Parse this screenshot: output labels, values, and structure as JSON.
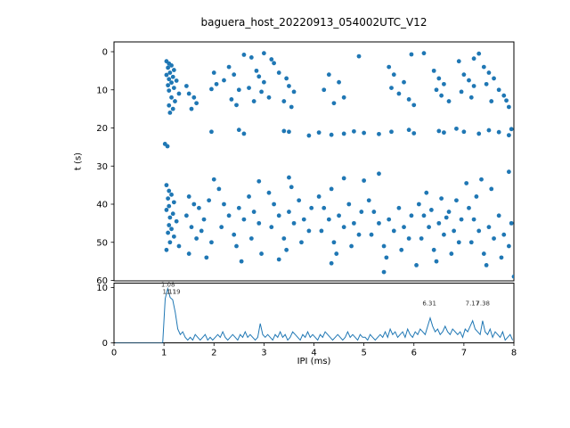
{
  "figure": {
    "title": "baguera_host_20220913_054002UTC_V12",
    "accent_color": "#1f77b4"
  },
  "chart_data": [
    {
      "type": "scatter",
      "name": "spike-raster",
      "ylabel": "t (s)",
      "xlim": [
        0,
        8
      ],
      "ylim": [
        60,
        0
      ],
      "y_inverted": true,
      "yticks": [
        0,
        10,
        20,
        30,
        40,
        50,
        60
      ],
      "grid": false,
      "marker_color": "#1f77b4",
      "points": [
        [
          1.05,
          2.5
        ],
        [
          1.1,
          3.1
        ],
        [
          1.15,
          3.6
        ],
        [
          1.08,
          4.2
        ],
        [
          1.2,
          4.8
        ],
        [
          1.12,
          5.5
        ],
        [
          1.05,
          6.1
        ],
        [
          1.18,
          6.6
        ],
        [
          1.1,
          7.2
        ],
        [
          1.25,
          7.6
        ],
        [
          1.15,
          8.1
        ],
        [
          1.08,
          8.8
        ],
        [
          1.2,
          9.5
        ],
        [
          1.1,
          10.2
        ],
        [
          1.3,
          11.0
        ],
        [
          1.15,
          12.0
        ],
        [
          1.22,
          13.0
        ],
        [
          1.1,
          14.1
        ],
        [
          1.18,
          15.0
        ],
        [
          1.12,
          16.0
        ],
        [
          1.02,
          24.2
        ],
        [
          1.07,
          24.8
        ],
        [
          1.95,
          21.0
        ],
        [
          2.5,
          20.5
        ],
        [
          2.6,
          21.5
        ],
        [
          3.4,
          20.8
        ],
        [
          3.5,
          21.0
        ],
        [
          3.9,
          22.0
        ],
        [
          4.1,
          21.2
        ],
        [
          4.35,
          21.8
        ],
        [
          4.6,
          21.5
        ],
        [
          4.8,
          20.9
        ],
        [
          5.0,
          21.3
        ],
        [
          5.3,
          21.6
        ],
        [
          5.55,
          21.0
        ],
        [
          5.9,
          20.5
        ],
        [
          6.0,
          21.4
        ],
        [
          6.5,
          20.8
        ],
        [
          6.6,
          21.2
        ],
        [
          6.85,
          20.2
        ],
        [
          7.0,
          21.0
        ],
        [
          7.3,
          21.5
        ],
        [
          7.5,
          20.6
        ],
        [
          7.7,
          21.1
        ],
        [
          7.9,
          21.9
        ],
        [
          7.95,
          20.3
        ],
        [
          1.6,
          12.0
        ],
        [
          1.65,
          13.5
        ],
        [
          1.55,
          15.0
        ],
        [
          1.5,
          11.0
        ],
        [
          1.45,
          9.0
        ],
        [
          2.3,
          4.0
        ],
        [
          2.4,
          6.0
        ],
        [
          2.2,
          7.5
        ],
        [
          2.5,
          10.0
        ],
        [
          2.35,
          12.5
        ],
        [
          2.45,
          14.0
        ],
        [
          2.85,
          5.0
        ],
        [
          2.9,
          6.5
        ],
        [
          3.0,
          8.0
        ],
        [
          2.7,
          9.5
        ],
        [
          2.95,
          10.5
        ],
        [
          3.1,
          12.0
        ],
        [
          2.8,
          13.0
        ],
        [
          3.2,
          3.0
        ],
        [
          3.3,
          5.5
        ],
        [
          2.6,
          0.8
        ],
        [
          2.75,
          1.5
        ],
        [
          3.0,
          0.4
        ],
        [
          3.15,
          2.0
        ],
        [
          3.45,
          7.0
        ],
        [
          3.5,
          9.0
        ],
        [
          3.6,
          10.5
        ],
        [
          3.4,
          13.0
        ],
        [
          3.55,
          14.5
        ],
        [
          4.3,
          6.0
        ],
        [
          4.5,
          8.0
        ],
        [
          4.2,
          10.0
        ],
        [
          4.6,
          12.0
        ],
        [
          4.4,
          13.5
        ],
        [
          5.5,
          4.0
        ],
        [
          5.6,
          6.0
        ],
        [
          5.8,
          8.0
        ],
        [
          5.55,
          9.5
        ],
        [
          5.7,
          11.0
        ],
        [
          5.9,
          12.5
        ],
        [
          6.0,
          14.0
        ],
        [
          6.4,
          5.0
        ],
        [
          6.5,
          7.0
        ],
        [
          6.6,
          8.5
        ],
        [
          6.45,
          10.0
        ],
        [
          6.55,
          11.5
        ],
        [
          6.7,
          13.0
        ],
        [
          7.0,
          6.0
        ],
        [
          7.1,
          7.5
        ],
        [
          7.2,
          9.0
        ],
        [
          6.95,
          10.5
        ],
        [
          7.15,
          12.0
        ],
        [
          7.4,
          4.0
        ],
        [
          7.5,
          5.5
        ],
        [
          7.6,
          7.0
        ],
        [
          7.45,
          8.5
        ],
        [
          7.7,
          10.0
        ],
        [
          7.8,
          11.5
        ],
        [
          7.55,
          13.0
        ],
        [
          7.9,
          14.5
        ],
        [
          7.85,
          12.8
        ],
        [
          7.3,
          0.5
        ],
        [
          7.2,
          1.8
        ],
        [
          6.9,
          2.5
        ],
        [
          5.95,
          0.7
        ],
        [
          4.9,
          1.2
        ],
        [
          2.0,
          5.5
        ],
        [
          2.05,
          8.5
        ],
        [
          1.95,
          9.8
        ],
        [
          6.2,
          0.4
        ],
        [
          3.5,
          33.0
        ],
        [
          5.3,
          32.0
        ],
        [
          7.9,
          31.5
        ],
        [
          2.0,
          33.5
        ],
        [
          4.6,
          33.2
        ],
        [
          2.9,
          34.0
        ],
        [
          5.0,
          33.8
        ],
        [
          7.35,
          33.5
        ],
        [
          7.05,
          34.5
        ],
        [
          1.05,
          35.0
        ],
        [
          1.1,
          36.5
        ],
        [
          1.15,
          37.5
        ],
        [
          1.08,
          38.5
        ],
        [
          1.2,
          39.5
        ],
        [
          1.1,
          40.5
        ],
        [
          1.05,
          41.5
        ],
        [
          1.18,
          42.5
        ],
        [
          1.12,
          43.5
        ],
        [
          1.25,
          44.5
        ],
        [
          1.1,
          45.5
        ],
        [
          1.15,
          46.5
        ],
        [
          1.08,
          47.5
        ],
        [
          1.2,
          48.5
        ],
        [
          1.12,
          50.0
        ],
        [
          1.3,
          51.0
        ],
        [
          1.05,
          52.0
        ],
        [
          1.5,
          38.0
        ],
        [
          1.6,
          40.0
        ],
        [
          1.45,
          43.0
        ],
        [
          1.55,
          46.0
        ],
        [
          1.65,
          49.0
        ],
        [
          1.5,
          53.0
        ],
        [
          1.7,
          41.0
        ],
        [
          1.8,
          44.0
        ],
        [
          1.75,
          47.0
        ],
        [
          1.9,
          39.0
        ],
        [
          1.95,
          50.0
        ],
        [
          1.85,
          54.0
        ],
        [
          2.1,
          36.0
        ],
        [
          2.2,
          40.0
        ],
        [
          2.3,
          43.0
        ],
        [
          2.15,
          46.0
        ],
        [
          2.4,
          48.0
        ],
        [
          2.5,
          41.0
        ],
        [
          2.6,
          44.0
        ],
        [
          2.45,
          51.0
        ],
        [
          2.7,
          38.0
        ],
        [
          2.8,
          42.0
        ],
        [
          2.9,
          45.0
        ],
        [
          2.75,
          49.0
        ],
        [
          2.95,
          53.0
        ],
        [
          2.55,
          55.0
        ],
        [
          3.1,
          37.0
        ],
        [
          3.2,
          40.0
        ],
        [
          3.3,
          43.0
        ],
        [
          3.15,
          46.0
        ],
        [
          3.4,
          49.0
        ],
        [
          3.5,
          42.0
        ],
        [
          3.6,
          45.0
        ],
        [
          3.45,
          52.0
        ],
        [
          3.7,
          39.0
        ],
        [
          3.8,
          44.0
        ],
        [
          3.9,
          47.0
        ],
        [
          3.75,
          50.0
        ],
        [
          3.95,
          41.0
        ],
        [
          3.55,
          35.5
        ],
        [
          4.1,
          38.0
        ],
        [
          4.2,
          41.0
        ],
        [
          4.3,
          44.0
        ],
        [
          4.15,
          47.0
        ],
        [
          4.4,
          50.0
        ],
        [
          4.5,
          43.0
        ],
        [
          4.6,
          46.0
        ],
        [
          4.45,
          53.0
        ],
        [
          4.7,
          40.0
        ],
        [
          4.8,
          45.0
        ],
        [
          4.9,
          48.0
        ],
        [
          4.75,
          51.0
        ],
        [
          4.95,
          42.0
        ],
        [
          4.35,
          36.0
        ],
        [
          4.35,
          55.5
        ],
        [
          5.1,
          39.0
        ],
        [
          5.2,
          42.0
        ],
        [
          5.3,
          45.0
        ],
        [
          5.15,
          48.0
        ],
        [
          5.4,
          51.0
        ],
        [
          5.5,
          44.0
        ],
        [
          5.6,
          47.0
        ],
        [
          5.45,
          54.0
        ],
        [
          5.7,
          41.0
        ],
        [
          5.8,
          46.0
        ],
        [
          5.9,
          49.0
        ],
        [
          5.75,
          52.0
        ],
        [
          5.95,
          43.0
        ],
        [
          5.4,
          57.8
        ],
        [
          6.05,
          56.0
        ],
        [
          6.1,
          40.0
        ],
        [
          6.2,
          43.0
        ],
        [
          6.3,
          46.0
        ],
        [
          6.15,
          49.0
        ],
        [
          6.4,
          52.0
        ],
        [
          6.5,
          45.0
        ],
        [
          6.6,
          48.0
        ],
        [
          6.45,
          55.0
        ],
        [
          6.7,
          42.0
        ],
        [
          6.8,
          47.0
        ],
        [
          6.9,
          50.0
        ],
        [
          6.75,
          53.0
        ],
        [
          6.95,
          44.0
        ],
        [
          6.25,
          37.0
        ],
        [
          6.55,
          38.5
        ],
        [
          6.35,
          41.5
        ],
        [
          6.65,
          43.5
        ],
        [
          6.85,
          39.0
        ],
        [
          7.1,
          41.0
        ],
        [
          7.2,
          44.0
        ],
        [
          7.3,
          47.0
        ],
        [
          7.15,
          50.0
        ],
        [
          7.4,
          53.0
        ],
        [
          7.5,
          46.0
        ],
        [
          7.6,
          49.0
        ],
        [
          7.45,
          56.0
        ],
        [
          7.7,
          43.0
        ],
        [
          7.8,
          48.0
        ],
        [
          7.9,
          51.0
        ],
        [
          7.75,
          54.0
        ],
        [
          7.95,
          45.0
        ],
        [
          7.25,
          38.0
        ],
        [
          7.55,
          36.0
        ],
        [
          3.3,
          54.5
        ],
        [
          8.0,
          59.0
        ]
      ]
    },
    {
      "type": "line",
      "name": "ipi-histogram",
      "xlabel": "IPI (ms)",
      "xlim": [
        0,
        8
      ],
      "ylim": [
        0,
        10.8
      ],
      "xticks": [
        0,
        1,
        2,
        3,
        4,
        5,
        6,
        7,
        8
      ],
      "yticks": [
        0,
        10
      ],
      "grid": false,
      "line_color": "#1f77b4",
      "bin_start": 0,
      "bin_width": 0.05,
      "values": [
        0,
        0,
        0,
        0,
        0,
        0,
        0,
        0,
        0,
        0,
        0,
        0,
        0,
        0,
        0,
        0,
        0,
        0,
        0,
        0,
        8,
        9.8,
        8.2,
        7.8,
        5.5,
        2.5,
        1.5,
        2,
        1,
        0.5,
        1,
        0.5,
        1.5,
        1,
        0.5,
        1,
        1.5,
        0.5,
        1,
        0.5,
        1,
        1.5,
        1,
        2,
        1,
        0.5,
        1,
        1.5,
        1,
        0.5,
        1.5,
        1,
        2,
        1,
        1.5,
        1,
        0.5,
        1,
        3.5,
        1.5,
        1,
        1.5,
        1,
        0.5,
        1.5,
        1,
        2,
        1,
        1.5,
        0.5,
        1,
        2,
        1.5,
        1,
        0.5,
        1.5,
        1,
        2,
        1,
        1.5,
        1,
        0.5,
        1.5,
        1,
        2,
        1.5,
        1,
        0.5,
        1,
        1.5,
        1,
        0.5,
        1,
        2,
        1,
        1.5,
        1,
        0.5,
        1.5,
        1,
        1,
        0.5,
        1.5,
        1,
        0.5,
        1,
        1.5,
        1,
        2,
        1,
        2.5,
        1.5,
        2,
        1,
        1.5,
        2,
        1,
        2.5,
        1.5,
        1,
        2,
        1.5,
        2.5,
        2,
        1.5,
        3,
        4.5,
        3,
        2,
        2.5,
        1.5,
        2,
        3,
        2,
        1.5,
        2.5,
        2,
        1.5,
        2,
        1,
        2.5,
        2,
        3,
        4,
        2.5,
        2,
        1.5,
        4,
        2,
        1.5,
        2.5,
        1,
        2,
        1.5,
        1,
        2,
        0.5,
        1,
        1.5,
        0.5
      ],
      "annotations": [
        {
          "x": 1.08,
          "y": 10.2,
          "label": "1.08"
        },
        {
          "x": 1.11,
          "y": 8.9,
          "label": "1.11"
        },
        {
          "x": 1.19,
          "y": 8.9,
          "label": "1.19"
        },
        {
          "x": 6.31,
          "y": 6.8,
          "label": "6.31"
        },
        {
          "x": 7.17,
          "y": 6.8,
          "label": "7.17"
        },
        {
          "x": 7.38,
          "y": 6.8,
          "label": "7.38"
        }
      ]
    }
  ]
}
